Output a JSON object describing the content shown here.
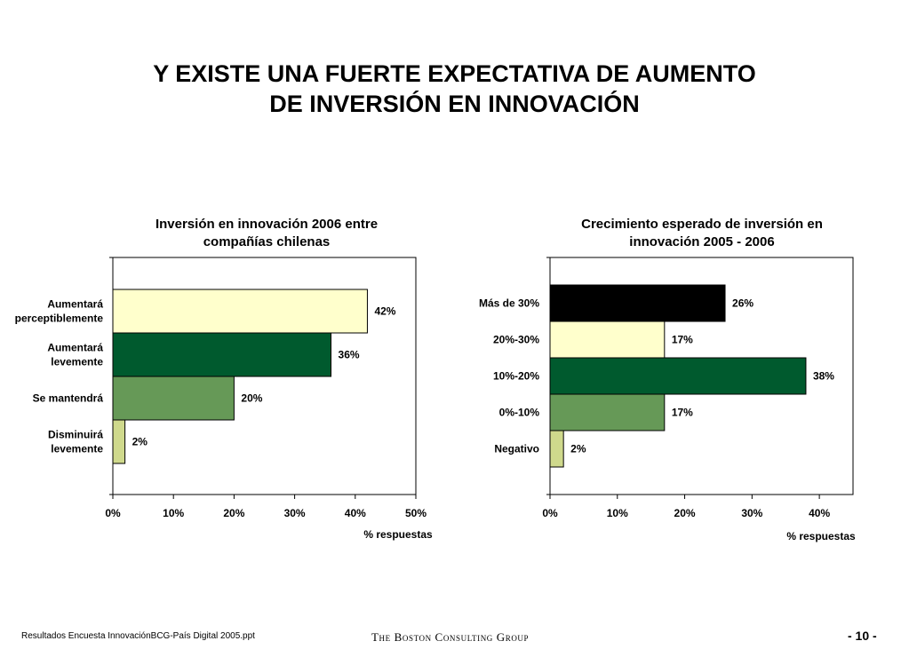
{
  "title": {
    "line1": "Y EXISTE UNA FUERTE EXPECTATIVA DE AUMENTO",
    "line2": "DE INVERSIÓN EN INNOVACIÓN"
  },
  "chart_data": [
    {
      "type": "bar",
      "orientation": "horizontal",
      "title": [
        "Inversión en innovación 2006 entre",
        "compañías chilenas"
      ],
      "categories": [
        [
          "Aumentará",
          "perceptiblemente"
        ],
        [
          "Aumentará",
          "levemente"
        ],
        [
          "Se mantendrá"
        ],
        [
          "Disminuirá",
          "levemente"
        ]
      ],
      "values": [
        42,
        36,
        20,
        2
      ],
      "data_labels": [
        "42%",
        "36%",
        "20%",
        "2%"
      ],
      "colors": [
        "#ffffcc",
        "#005a2e",
        "#669957",
        "#cfd98c"
      ],
      "xlim": [
        0,
        50
      ],
      "xticks": [
        0,
        10,
        20,
        30,
        40,
        50
      ],
      "xtick_labels": [
        "0%",
        "10%",
        "20%",
        "30%",
        "40%",
        "50%"
      ],
      "xlabel": "% respuestas",
      "ylabel": ""
    },
    {
      "type": "bar",
      "orientation": "horizontal",
      "title": [
        "Crecimiento esperado de inversión en",
        "innovación 2005 - 2006"
      ],
      "categories": [
        [
          "Más de 30%"
        ],
        [
          "20%-30%"
        ],
        [
          "10%-20%"
        ],
        [
          "0%-10%"
        ],
        [
          "Negativo"
        ]
      ],
      "values": [
        26,
        17,
        38,
        17,
        2
      ],
      "data_labels": [
        "26%",
        "17%",
        "38%",
        "17%",
        "2%"
      ],
      "colors": [
        "#000000",
        "#ffffcc",
        "#005a2e",
        "#669957",
        "#cfd98c"
      ],
      "xlim": [
        0,
        45
      ],
      "xticks": [
        0,
        10,
        20,
        30,
        40
      ],
      "xtick_labels": [
        "0%",
        "10%",
        "20%",
        "30%",
        "40%"
      ],
      "xlabel": "% respuestas",
      "ylabel": ""
    }
  ],
  "footer": {
    "source": "Resultados Encuesta InnovaciónBCG-País Digital 2005.ppt",
    "brand": "The Boston Consulting Group",
    "page": "- 10 -"
  }
}
